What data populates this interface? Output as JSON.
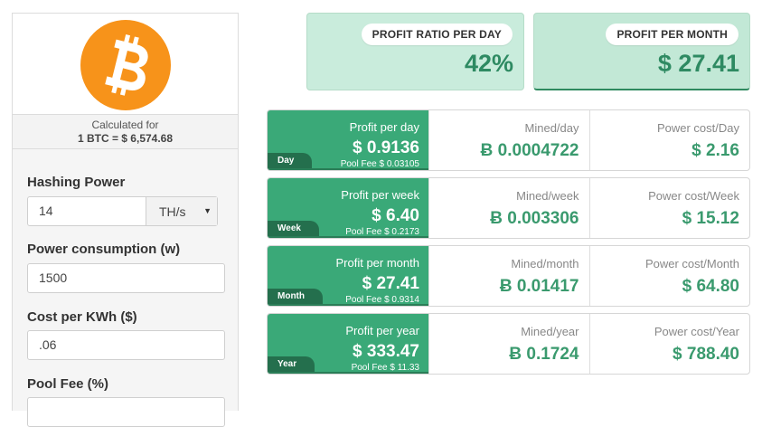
{
  "calculator": {
    "calc_label": "Calculated for",
    "rate_text": "1 BTC = $ 6,574.68"
  },
  "form": {
    "hashing_power_label": "Hashing Power",
    "hashing_power_value": "14",
    "hashing_unit": "TH/s",
    "power_consumption_label": "Power consumption (w)",
    "power_consumption_value": "1500",
    "cost_label": "Cost per KWh ($)",
    "cost_value": ".06",
    "pool_fee_label": "Pool Fee (%)"
  },
  "stats": {
    "ratio_label": "PROFIT RATIO PER DAY",
    "ratio_value": "42%",
    "month_label": "PROFIT PER MONTH",
    "month_value": "$ 27.41"
  },
  "rows": [
    {
      "period": "Day",
      "profit_label": "Profit per day",
      "profit_value": "$ 0.9136",
      "pool_fee": "Pool Fee $ 0.03105",
      "mined_label": "Mined/day",
      "mined_value": "Ƀ 0.0004722",
      "power_label": "Power cost/Day",
      "power_value": "$ 2.16"
    },
    {
      "period": "Week",
      "profit_label": "Profit per week",
      "profit_value": "$ 6.40",
      "pool_fee": "Pool Fee $ 0.2173",
      "mined_label": "Mined/week",
      "mined_value": "Ƀ 0.003306",
      "power_label": "Power cost/Week",
      "power_value": "$ 15.12"
    },
    {
      "period": "Month",
      "profit_label": "Profit per month",
      "profit_value": "$ 27.41",
      "pool_fee": "Pool Fee $ 0.9314",
      "mined_label": "Mined/month",
      "mined_value": "Ƀ 0.01417",
      "power_label": "Power cost/Month",
      "power_value": "$ 64.80"
    },
    {
      "period": "Year",
      "profit_label": "Profit per year",
      "profit_value": "$ 333.47",
      "pool_fee": "Pool Fee $ 11.33",
      "mined_label": "Mined/year",
      "mined_value": "Ƀ 0.1724",
      "power_label": "Power cost/Year",
      "power_value": "$ 788.40"
    }
  ],
  "colors": {
    "bitcoin_orange": "#f7931a",
    "profit_green": "#3aa978",
    "value_green": "#3a9a6e",
    "stat_bg": "#c9ecdc"
  },
  "icons": {
    "logo": "bitcoin-logo-icon",
    "select_caret": "caret-down-icon"
  }
}
